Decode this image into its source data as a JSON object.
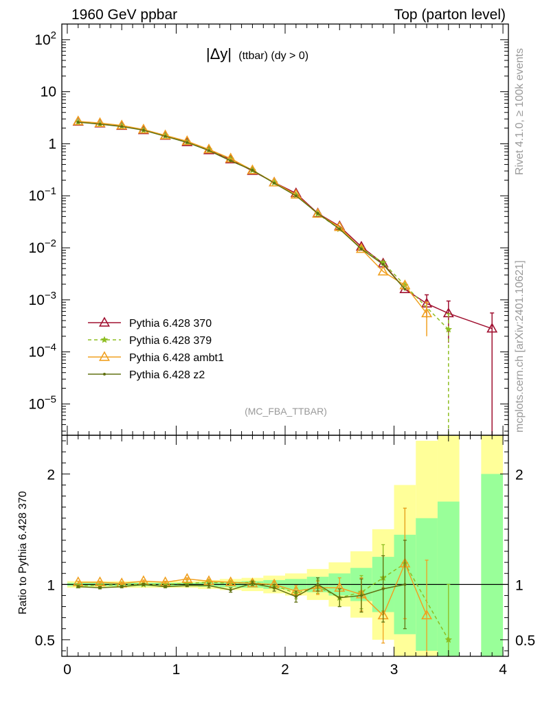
{
  "header": {
    "left": "1960 GeV ppbar",
    "right": "Top (parton level)"
  },
  "side_labels": {
    "rivet": "Rivet 4.1.0, ≥ 100k events",
    "mcplots": "mcplots.cern.ch [arXiv:2401.10621]"
  },
  "chart_data": [
    {
      "type": "line",
      "panel": "main",
      "title_main": "|Δy|",
      "title_sub": "(ttbar) (dy > 0)",
      "watermark": "(MC_FBA_TTBAR)",
      "yscale": "log",
      "xlim": [
        -0.05,
        4.05
      ],
      "ylim": [
        2.5e-06,
        200
      ],
      "yticks": [
        {
          "v": 100,
          "b": "10",
          "e": "2"
        },
        {
          "v": 10,
          "b": "10",
          "e": ""
        },
        {
          "v": 1,
          "b": "1",
          "e": ""
        },
        {
          "v": 0.1,
          "b": "10",
          "e": "−1"
        },
        {
          "v": 0.01,
          "b": "10",
          "e": "−2"
        },
        {
          "v": 0.001,
          "b": "10",
          "e": "−3"
        },
        {
          "v": 0.0001,
          "b": "10",
          "e": "−4"
        },
        {
          "v": 1e-05,
          "b": "10",
          "e": "−5"
        }
      ],
      "legend_position": "bottom-left",
      "series": [
        {
          "name": "Pythia 6.428 370",
          "color": "#a01030",
          "marker": "triangle-open",
          "dash": "solid",
          "x": [
            0.1,
            0.3,
            0.5,
            0.7,
            0.9,
            1.1,
            1.3,
            1.5,
            1.7,
            1.9,
            2.1,
            2.3,
            2.5,
            2.7,
            2.9,
            3.1,
            3.3,
            3.5,
            3.9
          ],
          "y": [
            2.65,
            2.45,
            2.2,
            1.82,
            1.42,
            1.07,
            0.75,
            0.5,
            0.3,
            0.18,
            0.112,
            0.046,
            0.026,
            0.0105,
            0.005,
            0.0016,
            0.00085,
            0.00055,
            0.00028
          ],
          "err": [
            0,
            0,
            0,
            0,
            0,
            0,
            0,
            0,
            0,
            0,
            0,
            0,
            0,
            0,
            0,
            0,
            0.0004,
            0.0004,
            0.00028
          ]
        },
        {
          "name": "Pythia 6.428 379",
          "color": "#8dbd20",
          "marker": "star",
          "dash": "dashed",
          "x": [
            0.1,
            0.3,
            0.5,
            0.7,
            0.9,
            1.1,
            1.3,
            1.5,
            1.7,
            1.9,
            2.1,
            2.3,
            2.5,
            2.7,
            2.9,
            3.1,
            3.5
          ],
          "y": [
            2.62,
            2.42,
            2.2,
            1.83,
            1.43,
            1.08,
            0.77,
            0.51,
            0.31,
            0.18,
            0.103,
            0.045,
            0.023,
            0.0098,
            0.0052,
            0.0019,
            0.00027
          ],
          "err": [
            0,
            0,
            0,
            0,
            0,
            0,
            0,
            0,
            0,
            0,
            0,
            0,
            0,
            0,
            0,
            0,
            0.00027
          ]
        },
        {
          "name": "Pythia 6.428 ambt1",
          "color": "#f0a020",
          "marker": "triangle-open",
          "dash": "solid",
          "x": [
            0.1,
            0.3,
            0.5,
            0.7,
            0.9,
            1.1,
            1.3,
            1.5,
            1.7,
            1.9,
            2.1,
            2.3,
            2.5,
            2.7,
            2.9,
            3.1,
            3.3
          ],
          "y": [
            2.7,
            2.5,
            2.25,
            1.88,
            1.45,
            1.12,
            0.78,
            0.52,
            0.31,
            0.18,
            0.105,
            0.045,
            0.025,
            0.0095,
            0.0035,
            0.0019,
            0.00055
          ],
          "err": [
            0,
            0,
            0,
            0,
            0,
            0,
            0,
            0,
            0,
            0,
            0,
            0,
            0,
            0,
            0,
            0,
            0.00035
          ]
        },
        {
          "name": "Pythia 6.428 z2",
          "color": "#607010",
          "marker": "dot",
          "dash": "solid",
          "x": [
            0.1,
            0.3,
            0.5,
            0.7,
            0.9,
            1.1,
            1.3,
            1.5,
            1.7,
            1.9,
            2.1,
            2.3,
            2.5,
            2.7,
            2.9,
            3.1
          ],
          "y": [
            2.6,
            2.38,
            2.15,
            1.82,
            1.39,
            1.06,
            0.74,
            0.47,
            0.31,
            0.175,
            0.1,
            0.046,
            0.023,
            0.0095,
            0.0048,
            0.0016
          ],
          "err": [
            0,
            0,
            0,
            0,
            0,
            0,
            0,
            0,
            0,
            0,
            0,
            0,
            0,
            0,
            0,
            0
          ]
        }
      ]
    },
    {
      "type": "line",
      "panel": "ratio",
      "ylabel": "Ratio to Pythia 6.428 370",
      "xlim": [
        -0.05,
        4.05
      ],
      "ylim": [
        0.35,
        2.35
      ],
      "yticks": [
        0.5,
        1,
        2
      ],
      "xticks": [
        0,
        1,
        2,
        3,
        4
      ],
      "reference_line": 1,
      "band_edges": [
        0,
        0.2,
        0.4,
        0.6,
        0.8,
        1.0,
        1.2,
        1.4,
        1.6,
        1.8,
        2.0,
        2.2,
        2.4,
        2.6,
        2.8,
        3.0,
        3.2,
        3.4,
        3.6,
        3.8,
        4.0
      ],
      "band_green": [
        0.015,
        0.015,
        0.015,
        0.015,
        0.015,
        0.015,
        0.02,
        0.025,
        0.03,
        0.04,
        0.05,
        0.07,
        0.1,
        0.15,
        0.25,
        0.45,
        0.6,
        0.75,
        null,
        1.0
      ],
      "band_yellow": [
        0.03,
        0.03,
        0.03,
        0.03,
        0.03,
        0.03,
        0.04,
        0.05,
        0.06,
        0.08,
        0.1,
        0.14,
        0.2,
        0.3,
        0.5,
        0.9,
        1.3,
        1.6,
        null,
        2.0
      ],
      "series": [
        {
          "name": "Pythia 6.428 379",
          "color": "#8dbd20",
          "marker": "star",
          "dash": "dashed",
          "x": [
            0.1,
            0.3,
            0.5,
            0.7,
            0.9,
            1.1,
            1.3,
            1.5,
            1.7,
            1.9,
            2.1,
            2.3,
            2.5,
            2.7,
            2.9,
            3.1,
            3.5
          ],
          "y": [
            0.99,
            0.99,
            1.0,
            1.0,
            1.0,
            1.01,
            1.02,
            1.01,
            1.02,
            0.99,
            0.92,
            0.98,
            0.88,
            0.93,
            1.06,
            1.19,
            0.5
          ],
          "err": [
            0.01,
            0.01,
            0.01,
            0.01,
            0.01,
            0.01,
            0.02,
            0.02,
            0.02,
            0.03,
            0.05,
            0.06,
            0.08,
            0.15,
            0.3,
            0.5,
            0.5
          ]
        },
        {
          "name": "Pythia 6.428 ambt1",
          "color": "#f0a020",
          "marker": "triangle-open",
          "dash": "solid",
          "x": [
            0.1,
            0.3,
            0.5,
            0.7,
            0.9,
            1.1,
            1.3,
            1.5,
            1.7,
            1.9,
            2.1,
            2.3,
            2.5,
            2.7,
            2.9,
            3.1,
            3.3
          ],
          "y": [
            1.02,
            1.02,
            1.01,
            1.03,
            1.02,
            1.05,
            1.03,
            1.02,
            1.01,
            1.0,
            0.94,
            0.97,
            0.97,
            0.91,
            0.72,
            1.19,
            0.72
          ],
          "err": [
            0.01,
            0.01,
            0.01,
            0.01,
            0.01,
            0.01,
            0.02,
            0.02,
            0.02,
            0.03,
            0.05,
            0.06,
            0.09,
            0.15,
            0.25,
            0.5,
            0.5
          ]
        },
        {
          "name": "Pythia 6.428 z2",
          "color": "#607010",
          "marker": "dot",
          "dash": "solid",
          "x": [
            0.1,
            0.3,
            0.5,
            0.7,
            0.9,
            1.1,
            1.3,
            1.5,
            1.7,
            1.9,
            2.1,
            2.3,
            2.5,
            2.7,
            2.9,
            3.1
          ],
          "y": [
            0.98,
            0.97,
            0.98,
            1.0,
            0.98,
            0.99,
            0.99,
            0.95,
            1.01,
            0.97,
            0.89,
            1.0,
            0.88,
            0.9,
            0.96,
            1.0
          ],
          "err": [
            0.01,
            0.01,
            0.01,
            0.01,
            0.01,
            0.01,
            0.02,
            0.02,
            0.02,
            0.03,
            0.05,
            0.06,
            0.08,
            0.15,
            0.3,
            0.4
          ]
        }
      ]
    }
  ]
}
